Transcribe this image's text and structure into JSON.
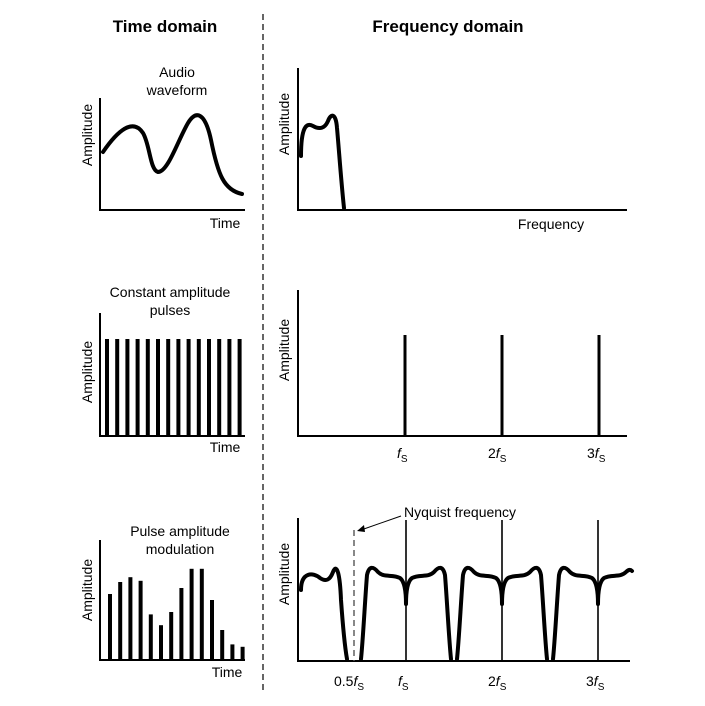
{
  "headers": {
    "time_domain": "Time domain",
    "frequency_domain": "Frequency domain"
  },
  "rows": [
    {
      "time_title_lines": [
        "Audio",
        "waveform"
      ],
      "time_ylabel": "Amplitude",
      "time_xlabel": "Time",
      "freq_ylabel": "Amplitude",
      "freq_xlabel": "Frequency"
    },
    {
      "time_title_lines": [
        "Constant amplitude",
        "pulses"
      ],
      "time_ylabel": "Amplitude",
      "time_xlabel": "Time",
      "freq_ylabel": "Amplitude",
      "freq_ticks": [
        {
          "prefix": "",
          "sub": "S"
        },
        {
          "prefix": "2",
          "sub": "S"
        },
        {
          "prefix": "3",
          "sub": "S"
        }
      ]
    },
    {
      "time_title_lines": [
        "Pulse amplitude",
        "modulation"
      ],
      "time_ylabel": "Amplitude",
      "time_xlabel": "Time",
      "freq_ylabel": "Amplitude",
      "freq_ticks": [
        {
          "prefix": "0.5",
          "sub": "S"
        },
        {
          "prefix": "",
          "sub": "S"
        },
        {
          "prefix": "2",
          "sub": "S"
        },
        {
          "prefix": "3",
          "sub": "S"
        }
      ],
      "annotation": "Nyquist frequency"
    }
  ],
  "pulse_count": 14,
  "pam_levels": [
    0.55,
    0.65,
    0.69,
    0.66,
    0.38,
    0.29,
    0.4,
    0.6,
    0.76,
    0.76,
    0.5,
    0.25,
    0.13,
    0.11
  ]
}
